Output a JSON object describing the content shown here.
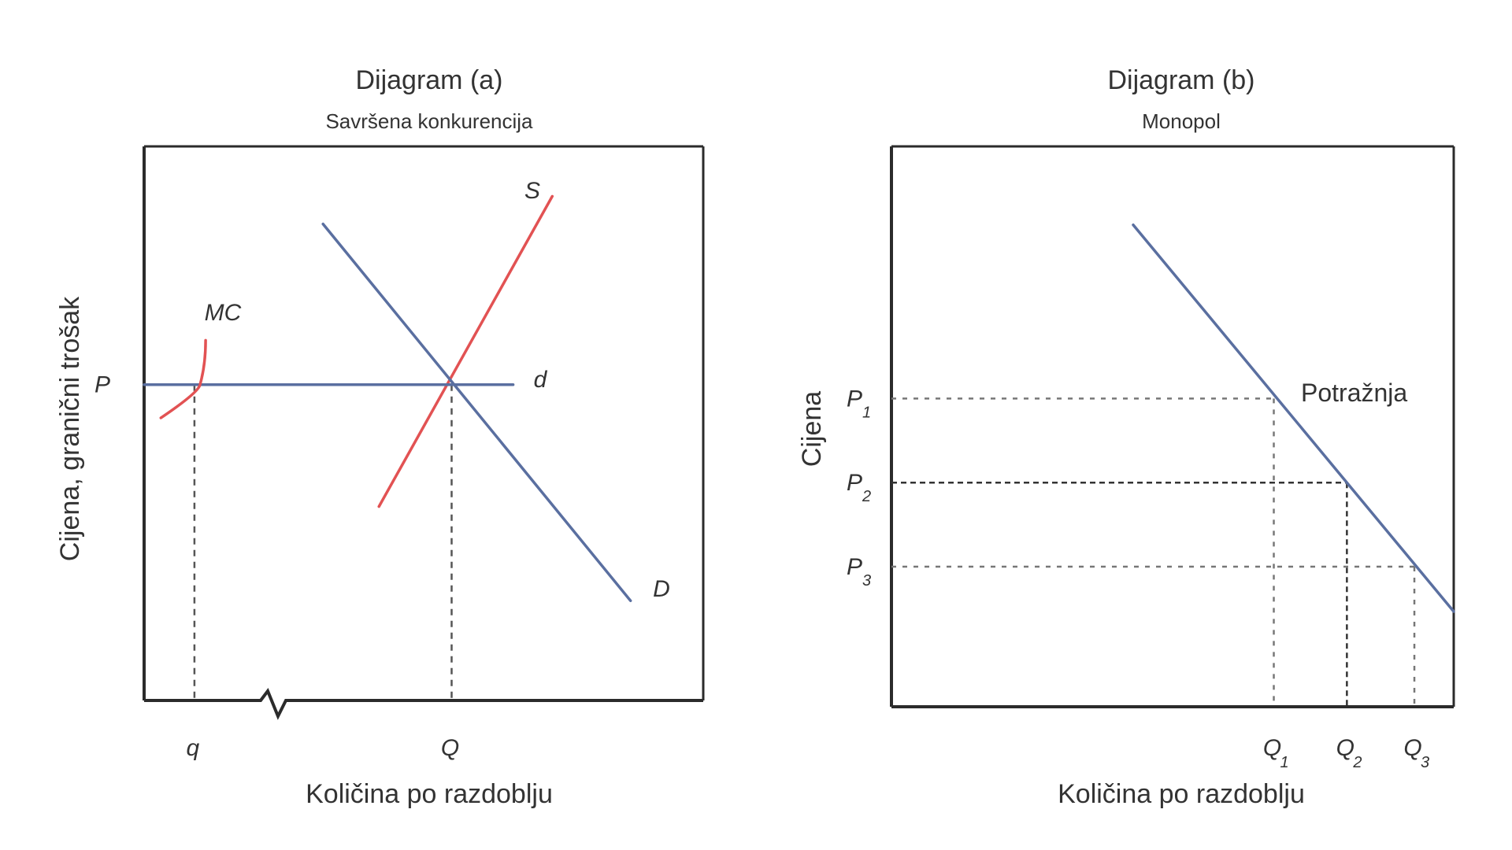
{
  "colors": {
    "blue": "#5a6fa0",
    "red": "#e25253",
    "frame": "#2b2b2b",
    "dash": "#555555",
    "text": "#333333"
  },
  "chart_data": [
    {
      "type": "line",
      "title": "Dijagram (a)",
      "subtitle": "Savršena konkurencija",
      "xlabel": "Količina po razdoblju",
      "ylabel": "Cijena, granični trošak",
      "x_ticks": [
        "q",
        "Q"
      ],
      "y_ticks": [
        "P"
      ],
      "axis_break": true,
      "series": [
        {
          "name": "S",
          "color": "#e25253",
          "points": [
            [
              0.42,
              0.35
            ],
            [
              0.73,
              0.91
            ]
          ]
        },
        {
          "name": "D",
          "color": "#5a6fa0",
          "points": [
            [
              0.32,
              0.86
            ],
            [
              0.87,
              0.18
            ]
          ]
        },
        {
          "name": "d",
          "color": "#5a6fa0",
          "points": [
            [
              0.0,
              0.57
            ],
            [
              0.66,
              0.57
            ]
          ]
        },
        {
          "name": "MC",
          "color": "#e25253",
          "points": [
            [
              0.03,
              0.51
            ],
            [
              0.1,
              0.57
            ],
            [
              0.11,
              0.65
            ]
          ]
        }
      ],
      "guides": [
        {
          "tick": "q",
          "x": 0.09,
          "y": 0.57
        },
        {
          "tick": "Q",
          "x": 0.55,
          "y": 0.57
        }
      ]
    },
    {
      "type": "line",
      "title": "Dijagram (b)",
      "subtitle": "Monopol",
      "xlabel": "Količina po razdoblju",
      "ylabel": "Cijena",
      "x_ticks": [
        {
          "base": "Q",
          "sub": "1"
        },
        {
          "base": "Q",
          "sub": "2"
        },
        {
          "base": "Q",
          "sub": "3"
        }
      ],
      "y_ticks": [
        {
          "base": "P",
          "sub": "1"
        },
        {
          "base": "P",
          "sub": "2"
        },
        {
          "base": "P",
          "sub": "3"
        }
      ],
      "series": [
        {
          "name": "Potražnja",
          "color": "#5a6fa0",
          "points": [
            [
              0.43,
              0.86
            ],
            [
              1.0,
              0.17
            ]
          ]
        }
      ],
      "points": [
        {
          "x": 0.68,
          "y": 0.55
        },
        {
          "x": 0.81,
          "y": 0.4
        },
        {
          "x": 0.93,
          "y": 0.25
        }
      ]
    }
  ]
}
